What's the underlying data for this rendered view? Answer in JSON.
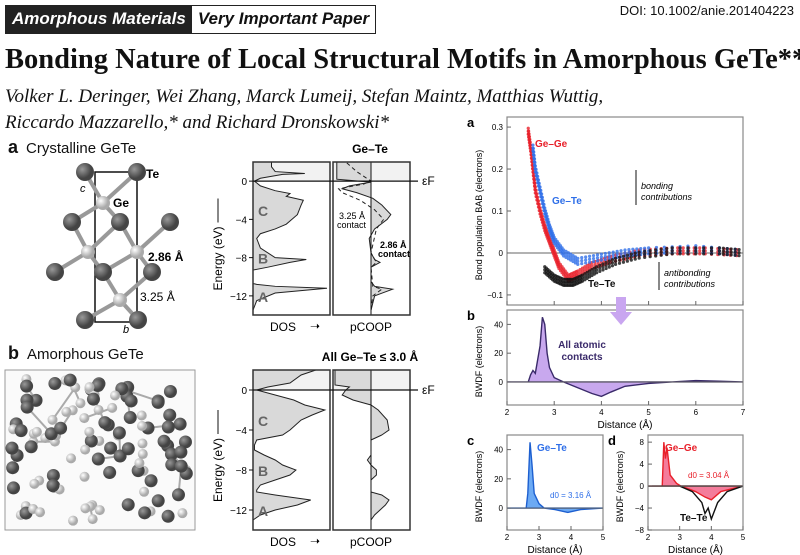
{
  "header": {
    "section_tag": "Amorphous Materials",
    "vip_tag": "Very Important Paper",
    "doi": "DOI: 10.1002/anie.201404223"
  },
  "article": {
    "title": "Bonding Nature of Local Structural Motifs in Amorphous GeTe**",
    "authors_line1": "Volker L. Deringer, Wei Zhang, Marck Lumeij, Stefan Maintz, Matthias Wuttig,",
    "authors_line2": "Riccardo Mazzarello,* and Richard Dronskowski*"
  },
  "figure1": {
    "panel_a": {
      "letter": "a",
      "title": "Crystalline GeTe",
      "atom_te": "Te",
      "atom_ge": "Ge",
      "axis_c": "c",
      "axis_b": "b",
      "bond_short": "2.86 Å",
      "bond_long": "3.25 Å",
      "dos_title": "Ge–Te",
      "annot_long": [
        "3.25 Å",
        "contact"
      ],
      "annot_short": [
        "2.86 Å",
        "contact"
      ]
    },
    "panel_b": {
      "letter": "b",
      "title": "Amorphous GeTe",
      "dos_title": "All Ge–Te ≤ 3.0 Å"
    },
    "energy_label": "Energy (eV)",
    "energy_ticks": [
      "0",
      "−4",
      "−8",
      "−12"
    ],
    "fermi_label": "εF",
    "band_labels": [
      "C",
      "B",
      "A"
    ],
    "dos_label": "DOS",
    "pcoop_label": "pCOOP"
  },
  "figure2": {
    "panel_a": {
      "letter": "a",
      "ylabel": "Bond population BAB (electrons)",
      "yticks": [
        "0.3",
        "0.2",
        "0.1",
        "0",
        "−0.1"
      ],
      "bonding": [
        "bonding",
        "contributions"
      ],
      "antibonding": [
        "antibonding",
        "contributions"
      ]
    },
    "panel_b": {
      "letter": "b",
      "ylabel": "BWDF (electrons)",
      "yticks": [
        "40",
        "20",
        "0"
      ],
      "annotation": [
        "All atomic",
        "contacts"
      ],
      "xlabel": "Distance (Å)",
      "xticks": [
        "2",
        "3",
        "4",
        "5",
        "6",
        "7"
      ]
    },
    "panel_c": {
      "letter": "c",
      "ylabel": "BWDF (electrons)",
      "yticks": [
        "40",
        "20",
        "0"
      ],
      "d0": "d0 = 3.16 Å",
      "xlabel": "Distance (Å)",
      "xticks": [
        "2",
        "3",
        "4",
        "5"
      ]
    },
    "panel_d": {
      "letter": "d",
      "ylabel": "BWDF (electrons)",
      "yticks": [
        "8",
        "4",
        "0",
        "−4",
        "−8"
      ],
      "d0": "d0 = 3.04 Å",
      "xlabel": "Distance (Å)",
      "xticks": [
        "2",
        "3",
        "4",
        "5"
      ]
    }
  },
  "chart_data": [
    {
      "type": "area",
      "id": "dos-crystalline",
      "xlabel": "DOS",
      "ylabel": "Energy (eV)",
      "ylim": [
        -14,
        2
      ],
      "points": [
        [
          -13.5,
          0
        ],
        [
          -12.5,
          0.05
        ],
        [
          -11.7,
          0.3
        ],
        [
          -11.2,
          1.0
        ],
        [
          -11,
          0.3
        ],
        [
          -10.8,
          0.05
        ],
        [
          -10.7,
          0
        ],
        [
          -9.3,
          0
        ],
        [
          -9,
          0.2
        ],
        [
          -8.5,
          0.5
        ],
        [
          -8.2,
          0.72
        ],
        [
          -8,
          0.3
        ],
        [
          -7,
          0.1
        ],
        [
          -6,
          0.05
        ],
        [
          -5.5,
          0.1
        ],
        [
          -5,
          0.3
        ],
        [
          -4.5,
          0.45
        ],
        [
          -3.5,
          0.6
        ],
        [
          -2.5,
          0.65
        ],
        [
          -2,
          0.68
        ],
        [
          -1.6,
          0.45
        ],
        [
          -1.3,
          0.5
        ],
        [
          -1,
          0.3
        ],
        [
          -0.5,
          0.1
        ],
        [
          0,
          0.02
        ],
        [
          0.3,
          0.1
        ],
        [
          0.7,
          0.4
        ],
        [
          0.8,
          0.7
        ],
        [
          1,
          0.3
        ],
        [
          1.5,
          0.25
        ],
        [
          2,
          0.25
        ]
      ]
    },
    {
      "type": "line",
      "id": "pcoop-crystalline",
      "xlabel": "pCOOP",
      "ylim": [
        -14,
        2
      ],
      "series": [
        {
          "style": "solid",
          "points": [
            [
              -13.5,
              0
            ],
            [
              -12,
              0.1
            ],
            [
              -11.3,
              0.6
            ],
            [
              -11,
              0.1
            ],
            [
              -10.5,
              0
            ],
            [
              -9,
              0
            ],
            [
              -8.5,
              0.25
            ],
            [
              -8.2,
              0.1
            ],
            [
              -7.5,
              0
            ],
            [
              -6,
              -0.05
            ],
            [
              -5,
              0.1
            ],
            [
              -4,
              0.45
            ],
            [
              -3.5,
              0.55
            ],
            [
              -2.5,
              0.3
            ],
            [
              -1.8,
              0.05
            ],
            [
              -1.2,
              -0.4
            ],
            [
              -0.8,
              -0.8
            ],
            [
              -0.5,
              -0.6
            ],
            [
              -0.1,
              0
            ],
            [
              0.2,
              -0.95
            ],
            [
              2,
              -0.95
            ]
          ]
        },
        {
          "style": "dashed",
          "points": [
            [
              -13.5,
              0
            ],
            [
              -12,
              0.05
            ],
            [
              -11.3,
              0.3
            ],
            [
              -11,
              0.05
            ],
            [
              -9,
              0
            ],
            [
              -8.5,
              0.15
            ],
            [
              -7.5,
              0
            ],
            [
              -5,
              0.15
            ],
            [
              -4,
              0.35
            ],
            [
              -3,
              0.1
            ],
            [
              -2,
              -0.3
            ],
            [
              -1.2,
              -0.8
            ],
            [
              -0.8,
              -0.9
            ],
            [
              -0.3,
              -0.2
            ],
            [
              0,
              0
            ],
            [
              1,
              -0.4
            ],
            [
              2,
              -0.7
            ]
          ]
        }
      ]
    },
    {
      "type": "area",
      "id": "dos-amorphous",
      "xlabel": "DOS",
      "ylabel": "Energy (eV)",
      "ylim": [
        -14,
        2
      ],
      "points": [
        [
          -13,
          0
        ],
        [
          -12.5,
          0.1
        ],
        [
          -12,
          0.3
        ],
        [
          -11.5,
          0.6
        ],
        [
          -11,
          0.78
        ],
        [
          -10.5,
          0.3
        ],
        [
          -10.2,
          0.05
        ],
        [
          -10,
          0.05
        ],
        [
          -9.5,
          0.1
        ],
        [
          -9,
          0.3
        ],
        [
          -8.5,
          0.5
        ],
        [
          -8,
          0.58
        ],
        [
          -7.5,
          0.4
        ],
        [
          -7,
          0.3
        ],
        [
          -6.5,
          0.15
        ],
        [
          -6,
          0.02
        ],
        [
          -5.5,
          0.02
        ],
        [
          -5,
          0.05
        ],
        [
          -4.5,
          0.4
        ],
        [
          -4,
          0.5
        ],
        [
          -3,
          0.65
        ],
        [
          -2.5,
          0.8
        ],
        [
          -2,
          0.97
        ],
        [
          -1.5,
          0.7
        ],
        [
          -1,
          0.55
        ],
        [
          -0.5,
          0.3
        ],
        [
          0,
          0.05
        ],
        [
          0.3,
          0.2
        ],
        [
          0.7,
          0.5
        ],
        [
          1.5,
          0.65
        ],
        [
          2,
          0.85
        ]
      ]
    },
    {
      "type": "line",
      "id": "pcoop-amorphous",
      "xlabel": "pCOOP",
      "ylim": [
        -14,
        2
      ],
      "series": [
        {
          "style": "solid",
          "points": [
            [
              -13,
              0
            ],
            [
              -12.5,
              0.1
            ],
            [
              -11.5,
              0.4
            ],
            [
              -11,
              0.5
            ],
            [
              -10.5,
              0.3
            ],
            [
              -10.2,
              0
            ],
            [
              -9,
              0
            ],
            [
              -8.5,
              0.15
            ],
            [
              -8,
              0.15
            ],
            [
              -7.5,
              0
            ],
            [
              -7,
              -0.1
            ],
            [
              -6.5,
              0
            ],
            [
              -5,
              0
            ],
            [
              -4.5,
              0.3
            ],
            [
              -4,
              0.5
            ],
            [
              -3,
              0.45
            ],
            [
              -2,
              0.2
            ],
            [
              -1.5,
              0
            ],
            [
              -1,
              -0.5
            ],
            [
              -0.5,
              -0.8
            ],
            [
              0,
              -0.7
            ],
            [
              0.3,
              -0.6
            ],
            [
              0.5,
              -1.0
            ],
            [
              2,
              -1.0
            ]
          ]
        }
      ]
    },
    {
      "type": "scatter",
      "id": "bond-population",
      "xlabel": "Distance (Å)",
      "ylabel": "Bond population BAB (electrons)",
      "xlim": [
        2,
        7
      ],
      "ylim": [
        -0.124,
        0.324
      ],
      "series": [
        {
          "name": "Ge–Ge",
          "color": "#e8202a",
          "points": [
            [
              2.45,
              0.29
            ],
            [
              2.5,
              0.25
            ],
            [
              2.55,
              0.2
            ],
            [
              2.6,
              0.15
            ],
            [
              2.7,
              0.1
            ],
            [
              2.8,
              0.06
            ],
            [
              2.9,
              0.03
            ],
            [
              3.0,
              0
            ],
            [
              3.1,
              -0.03
            ],
            [
              3.3,
              -0.06
            ],
            [
              3.5,
              -0.05
            ],
            [
              3.8,
              -0.03
            ],
            [
              4.2,
              -0.015
            ],
            [
              4.8,
              0.0
            ],
            [
              5.5,
              0.005
            ],
            [
              6.2,
              0.005
            ],
            [
              7,
              0
            ]
          ]
        },
        {
          "name": "Ge–Te",
          "color": "#2f6fe8",
          "points": [
            [
              2.55,
              0.25
            ],
            [
              2.6,
              0.2
            ],
            [
              2.7,
              0.15
            ],
            [
              2.8,
              0.1
            ],
            [
              2.9,
              0.06
            ],
            [
              3.0,
              0.03
            ],
            [
              3.2,
              0
            ],
            [
              3.5,
              -0.02
            ],
            [
              4,
              -0.01
            ],
            [
              4.5,
              0
            ],
            [
              5,
              0.005
            ],
            [
              6,
              0.01
            ],
            [
              7,
              0
            ]
          ]
        },
        {
          "name": "Te–Te",
          "color": "#111111",
          "points": [
            [
              2.8,
              -0.04
            ],
            [
              3,
              -0.06
            ],
            [
              3.2,
              -0.07
            ],
            [
              3.4,
              -0.07
            ],
            [
              3.6,
              -0.06
            ],
            [
              3.9,
              -0.04
            ],
            [
              4.3,
              -0.02
            ],
            [
              4.8,
              -0.005
            ],
            [
              5.5,
              0.005
            ],
            [
              6.5,
              0.005
            ],
            [
              7,
              0
            ]
          ]
        }
      ]
    },
    {
      "type": "area",
      "id": "bwdf-all",
      "xlabel": "Distance (Å)",
      "ylabel": "BWDF (electrons)",
      "xlim": [
        2,
        7
      ],
      "ylim": [
        -16,
        50
      ],
      "series": [
        {
          "name": "All atomic contacts",
          "color": "#b58be8",
          "line": "#3a2a6a",
          "points": [
            [
              2,
              0
            ],
            [
              2.45,
              0
            ],
            [
              2.5,
              5
            ],
            [
              2.55,
              8
            ],
            [
              2.6,
              6
            ],
            [
              2.7,
              25
            ],
            [
              2.75,
              45
            ],
            [
              2.8,
              40
            ],
            [
              2.85,
              20
            ],
            [
              2.9,
              10
            ],
            [
              3,
              3
            ],
            [
              3.2,
              0
            ],
            [
              3.5,
              -4
            ],
            [
              3.8,
              -8
            ],
            [
              4,
              -10
            ],
            [
              4.2,
              -7
            ],
            [
              4.5,
              -3
            ],
            [
              5,
              -1
            ],
            [
              5.5,
              0
            ],
            [
              6,
              1
            ],
            [
              6.5,
              0.5
            ],
            [
              7,
              0
            ]
          ]
        }
      ]
    },
    {
      "type": "area",
      "id": "bwdf-gete",
      "xlabel": "Distance (Å)",
      "ylabel": "BWDF (electrons)",
      "xlim": [
        2,
        5
      ],
      "ylim": [
        -15,
        50
      ],
      "series": [
        {
          "name": "Ge–Te",
          "color": "#3b8ef0",
          "line": "#1d5fd0",
          "points": [
            [
              2,
              0
            ],
            [
              2.6,
              0
            ],
            [
              2.65,
              10
            ],
            [
              2.72,
              45
            ],
            [
              2.78,
              30
            ],
            [
              2.85,
              10
            ],
            [
              3,
              3
            ],
            [
              3.16,
              0
            ],
            [
              3.5,
              -1
            ],
            [
              3.9,
              -3
            ],
            [
              4.3,
              -1
            ],
            [
              5,
              0
            ]
          ]
        }
      ]
    },
    {
      "type": "area",
      "id": "bwdf-gege-tete",
      "xlabel": "Distance (Å)",
      "ylabel": "BWDF (electrons)",
      "xlim": [
        2,
        5
      ],
      "ylim": [
        -8,
        9.3
      ],
      "series": [
        {
          "name": "Ge–Ge",
          "color": "#f0507a",
          "line": "#e8202a",
          "points": [
            [
              2,
              0
            ],
            [
              2.45,
              0
            ],
            [
              2.5,
              8
            ],
            [
              2.55,
              5
            ],
            [
              2.6,
              7
            ],
            [
              2.7,
              2
            ],
            [
              2.9,
              0.5
            ],
            [
              3.04,
              0
            ],
            [
              3.5,
              -1
            ],
            [
              3.8,
              -2
            ],
            [
              4,
              -2.5
            ],
            [
              4.3,
              -1
            ],
            [
              5,
              0
            ]
          ]
        },
        {
          "name": "Te–Te",
          "color": "none",
          "line": "#111111",
          "points": [
            [
              2,
              0
            ],
            [
              3,
              0
            ],
            [
              3.4,
              -1
            ],
            [
              3.7,
              -3
            ],
            [
              3.8,
              -5
            ],
            [
              3.9,
              -4
            ],
            [
              4,
              -6
            ],
            [
              4.2,
              -3
            ],
            [
              4.5,
              -1
            ],
            [
              5,
              0
            ]
          ]
        }
      ]
    }
  ],
  "colors": {
    "badge_dark": "#222222",
    "dos_fill": "#d9d9d9",
    "above_fermi": "#f2f2f2",
    "arrow": "#c9a6f0"
  }
}
